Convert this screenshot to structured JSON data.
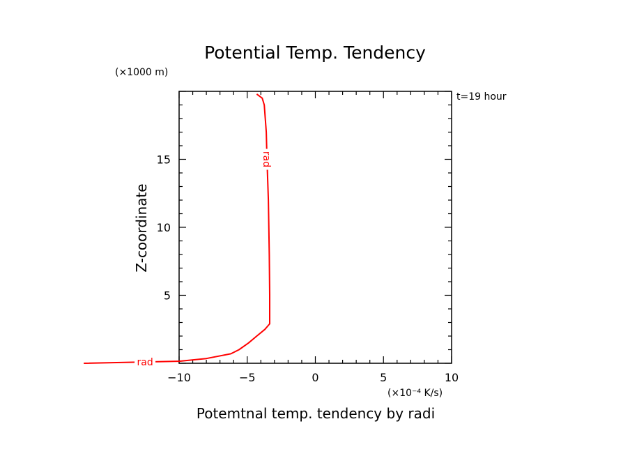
{
  "chart_data": {
    "type": "line",
    "title": "Potential Temp. Tendency",
    "xlabel": "Potemtnal temp. tendency by radi",
    "ylabel": "Z-coordinate",
    "x_unit": "(×10⁻⁴ K/s)",
    "y_unit": "(×1000 m)",
    "time_label": "t=19 hour",
    "xlim": [
      -10,
      10
    ],
    "ylim": [
      0,
      20
    ],
    "x_ticks": [
      -10,
      -5,
      0,
      5,
      10
    ],
    "y_ticks": [
      5,
      10,
      15
    ],
    "grid": false,
    "series": [
      {
        "name": "rad",
        "color": "#ff0000",
        "x": [
          -17,
          -10,
          -8,
          -6.2,
          -5.6,
          -4.9,
          -4.3,
          -3.7,
          -3.35,
          -3.35,
          -3.38,
          -3.45,
          -3.55,
          -3.6,
          -3.75,
          -3.9,
          -4.3
        ],
        "y": [
          0,
          0.15,
          0.35,
          0.7,
          1.0,
          1.5,
          2.0,
          2.5,
          2.9,
          5,
          8,
          12,
          15,
          17,
          19,
          19.5,
          19.8
        ]
      }
    ],
    "line_labels": [
      {
        "text": "rad",
        "x": -12.5,
        "y": 0.1,
        "rotation": 0
      },
      {
        "text": "rad",
        "x": -3.55,
        "y": 15,
        "rotation": 90
      }
    ]
  }
}
